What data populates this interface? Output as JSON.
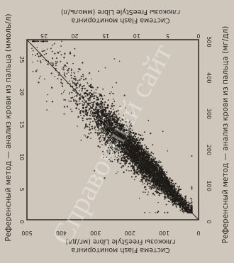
{
  "chart_data": {
    "type": "scatter",
    "left_label": "Референсный метод — анализ крови из пальца (ммоль/л)",
    "right_label": "Референсный метод — анализ крови из пальца (мг/дл)",
    "top_label_line1": "Система Flash мониторинга",
    "top_label_line2": "глюкозы FreeStyle Libre (ммоль/л)",
    "bottom_label_line1": "Система Flash мониторинга",
    "bottom_label_line2": "глюкозы FreeStyle Libre (мг/дл)",
    "xlim_mmol": [
      0,
      27.75
    ],
    "ylim_mmol": [
      0,
      27.75
    ],
    "xlim_mgdl": [
      0,
      500
    ],
    "ylim_mgdl": [
      0,
      500
    ],
    "x_ticks_mmol": [
      "0",
      "5",
      "10",
      "15",
      "20",
      "25"
    ],
    "y_ticks_mmol": [
      "0",
      "5",
      "10",
      "15",
      "20",
      "25"
    ],
    "x_ticks_mgdl": [
      "0",
      "100",
      "200",
      "300",
      "400",
      "500"
    ],
    "y_ticks_mgdl": [
      "0",
      "100",
      "200",
      "300",
      "400",
      "500"
    ],
    "reference_lines": [
      "identity"
    ],
    "grid": false,
    "colors": {
      "points": "#1f1b18",
      "frame": "#2b2622",
      "background": "#cfc7bc"
    }
  },
  "watermark_text": "Справочный сайт"
}
